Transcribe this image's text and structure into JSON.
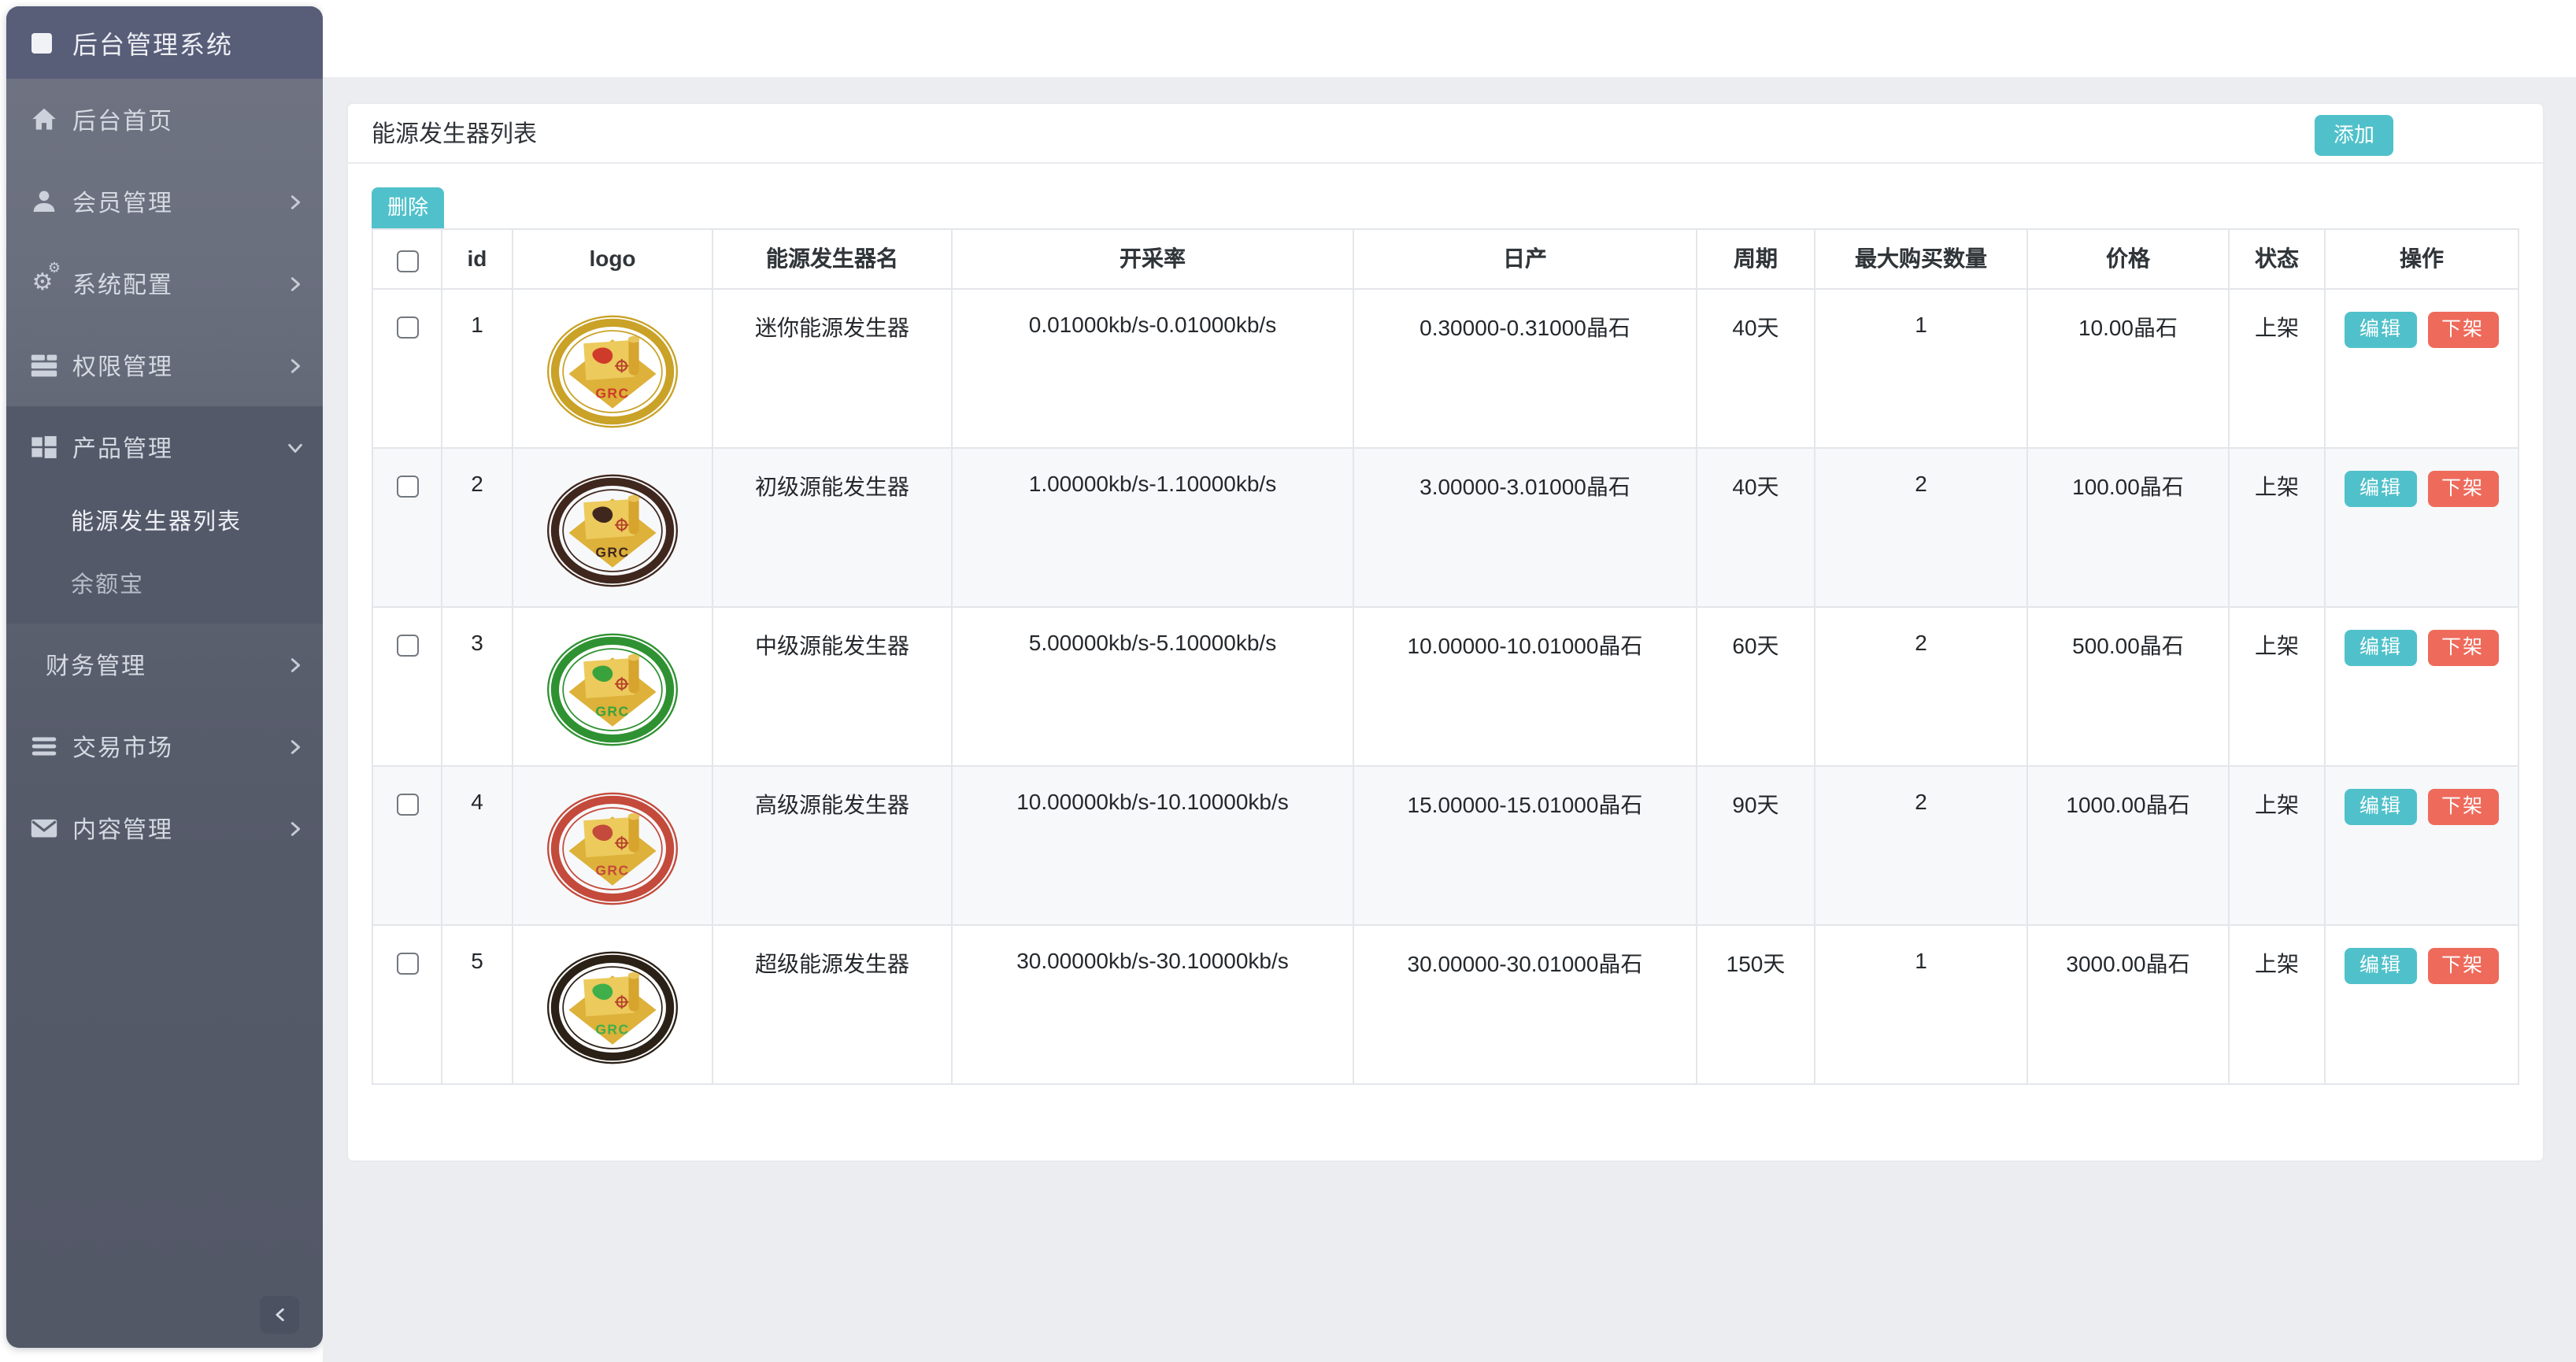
{
  "colors": {
    "accent_teal": "#50c1ca",
    "danger_red": "#ee6a5b",
    "sidebar_header_bg": "#585d78",
    "sidebar_active_bg": "#54596a",
    "page_bg": "#ebedf0",
    "stripe_row_bg": "#f7f8fa"
  },
  "sidebar": {
    "title": "后台管理系统",
    "items": [
      {
        "label": "后台首页",
        "icon": "home",
        "chevron": null
      },
      {
        "label": "会员管理",
        "icon": "user",
        "chevron": "right"
      },
      {
        "label": "系统配置",
        "icon": "gears",
        "chevron": "right"
      },
      {
        "label": "权限管理",
        "icon": "server",
        "chevron": "right"
      },
      {
        "label": "产品管理",
        "icon": "grid",
        "chevron": "down",
        "active": true,
        "children": [
          {
            "label": "能源发生器列表",
            "active": true
          },
          {
            "label": "余额宝",
            "active": false
          }
        ]
      },
      {
        "label": "财务管理",
        "icon": null,
        "chevron": "right"
      },
      {
        "label": "交易市场",
        "icon": "bars",
        "chevron": "right"
      },
      {
        "label": "内容管理",
        "icon": "envelope",
        "chevron": "right"
      }
    ]
  },
  "page": {
    "card_title": "能源发生器列表",
    "add_button": "添加",
    "delete_button": "删除"
  },
  "table": {
    "columns": [
      "",
      "id",
      "logo",
      "能源发生器名",
      "开采率",
      "日产",
      "周期",
      "最大购买数量",
      "价格",
      "状态",
      "操作"
    ],
    "actions": {
      "edit": "编辑",
      "offline": "下架"
    },
    "rows": [
      {
        "id": "1",
        "name": "迷你能源发生器",
        "rate": "0.01000kb/s-0.01000kb/s",
        "daily": "0.30000-0.31000晶石",
        "cycle": "40天",
        "max_buy": "1",
        "price": "10.00晶石",
        "status": "上架",
        "logo": {
          "text": "GRC",
          "ring": "#c9a227",
          "land": "#cf3b2a"
        }
      },
      {
        "id": "2",
        "name": "初级源能发生器",
        "rate": "1.00000kb/s-1.10000kb/s",
        "daily": "3.00000-3.01000晶石",
        "cycle": "40天",
        "max_buy": "2",
        "price": "100.00晶石",
        "status": "上架",
        "logo": {
          "text": "GRC",
          "ring": "#40271e",
          "land": "#40271e"
        }
      },
      {
        "id": "3",
        "name": "中级源能发生器",
        "rate": "5.00000kb/s-5.10000kb/s",
        "daily": "10.00000-10.01000晶石",
        "cycle": "60天",
        "max_buy": "2",
        "price": "500.00晶石",
        "status": "上架",
        "logo": {
          "text": "GRC",
          "ring": "#2f9232",
          "land": "#3aa23d"
        }
      },
      {
        "id": "4",
        "name": "高级源能发生器",
        "rate": "10.00000kb/s-10.10000kb/s",
        "daily": "15.00000-15.01000晶石",
        "cycle": "90天",
        "max_buy": "2",
        "price": "1000.00晶石",
        "status": "上架",
        "logo": {
          "text": "GRC",
          "ring": "#c44a3b",
          "land": "#c44a3b"
        }
      },
      {
        "id": "5",
        "name": "超级能源发生器",
        "rate": "30.00000kb/s-30.10000kb/s",
        "daily": "30.00000-30.01000晶石",
        "cycle": "150天",
        "max_buy": "1",
        "price": "3000.00晶石",
        "status": "上架",
        "logo": {
          "text": "GRC",
          "ring": "#2b2117",
          "land": "#3faf4b"
        }
      }
    ]
  }
}
